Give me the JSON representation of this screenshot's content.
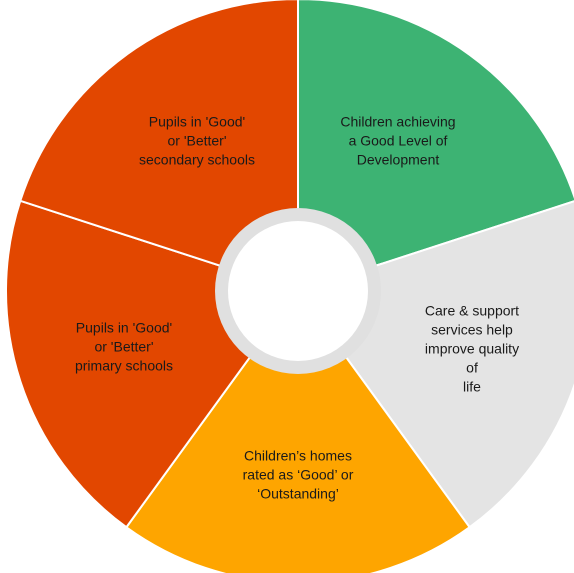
{
  "segments": [
    {
      "id": "gld",
      "label": "Children achieving\na Good Level of\nDevelopment",
      "color": "#3db373"
    },
    {
      "id": "care",
      "label": "Care & support\nservices help\nimprove quality of\nlife",
      "color": "#e4e4e4"
    },
    {
      "id": "homes",
      "label": "Children’s homes\nrated as ‘Good’ or\n‘Outstanding’",
      "color": "#fea500"
    },
    {
      "id": "primary",
      "label": "Pupils in 'Good'\nor 'Better'\nprimary schools",
      "color": "#e24700"
    },
    {
      "id": "secondary",
      "label": "Pupils in 'Good'\nor 'Better'\nsecondary schools",
      "color": "#e24700"
    }
  ],
  "hub": {
    "ring_color": "#e0e0e0",
    "fill_color": "#ffffff"
  }
}
